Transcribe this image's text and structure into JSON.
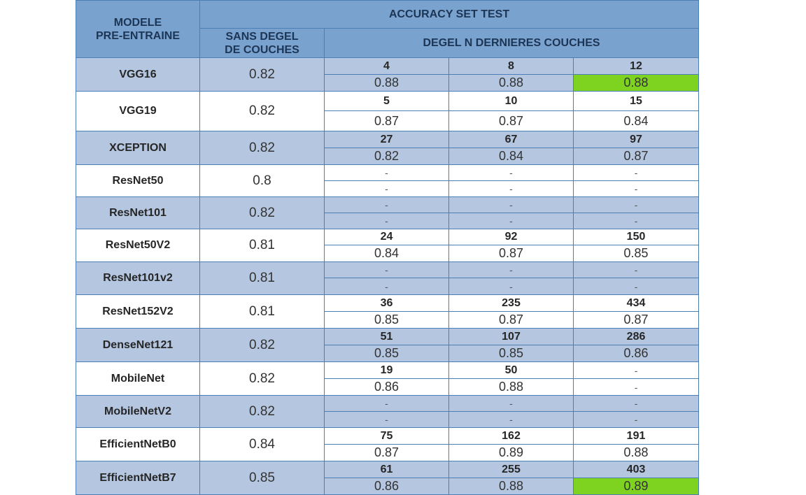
{
  "header": {
    "model_col": "MODELE\nPRE-ENTRAINE",
    "accuracy": "ACCURACY SET TEST",
    "no_unfreeze": "SANS DEGEL\nDE COUCHES",
    "unfreeze": "DEGEL N DERNIERES COUCHES"
  },
  "rows": [
    {
      "model": "VGG16",
      "base": "0.82",
      "n": [
        "4",
        "8",
        "12"
      ],
      "v": [
        "0.88",
        "0.88",
        "0.88"
      ],
      "best": [
        false,
        false,
        true
      ]
    },
    {
      "model": "VGG19",
      "base": "0.82",
      "n": [
        "5",
        "10",
        "15"
      ],
      "v": [
        "0.87",
        "0.87",
        "0.84"
      ],
      "best": [
        false,
        false,
        false
      ]
    },
    {
      "model": "XCEPTION",
      "base": "0.82",
      "n": [
        "27",
        "67",
        "97"
      ],
      "v": [
        "0.82",
        "0.84",
        "0.87"
      ],
      "best": [
        false,
        false,
        false
      ]
    },
    {
      "model": "ResNet50",
      "base": "0.8",
      "n": [
        "-",
        "-",
        "-"
      ],
      "v": [
        "-",
        "-",
        "-"
      ],
      "best": [
        false,
        false,
        false
      ]
    },
    {
      "model": "ResNet101",
      "base": "0.82",
      "n": [
        "-",
        "-",
        "-"
      ],
      "v": [
        "-",
        "-",
        "-"
      ],
      "best": [
        false,
        false,
        false
      ]
    },
    {
      "model": "ResNet50V2",
      "base": "0.81",
      "n": [
        "24",
        "92",
        "150"
      ],
      "v": [
        "0.84",
        "0.87",
        "0.85"
      ],
      "best": [
        false,
        false,
        false
      ]
    },
    {
      "model": "ResNet101v2",
      "base": "0.81",
      "n": [
        "-",
        "-",
        "-"
      ],
      "v": [
        "-",
        "-",
        "-"
      ],
      "best": [
        false,
        false,
        false
      ]
    },
    {
      "model": "ResNet152V2",
      "base": "0.81",
      "n": [
        "36",
        "235",
        "434"
      ],
      "v": [
        "0.85",
        "0.87",
        "0.87"
      ],
      "best": [
        false,
        false,
        false
      ]
    },
    {
      "model": "DenseNet121",
      "base": "0.82",
      "n": [
        "51",
        "107",
        "286"
      ],
      "v": [
        "0.85",
        "0.85",
        "0.86"
      ],
      "best": [
        false,
        false,
        false
      ]
    },
    {
      "model": "MobileNet",
      "base": "0.82",
      "n": [
        "19",
        "50",
        "-"
      ],
      "v": [
        "0.86",
        "0.88",
        "-"
      ],
      "best": [
        false,
        false,
        false
      ]
    },
    {
      "model": "MobileNetV2",
      "base": "0.82",
      "n": [
        "-",
        "-",
        "-"
      ],
      "v": [
        "-",
        "-",
        "-"
      ],
      "best": [
        false,
        false,
        false
      ]
    },
    {
      "model": "EfficientNetB0",
      "base": "0.84",
      "n": [
        "75",
        "162",
        "191"
      ],
      "v": [
        "0.87",
        "0.89",
        "0.88"
      ],
      "best": [
        false,
        false,
        false
      ]
    },
    {
      "model": "EfficientNetB7",
      "base": "0.85",
      "n": [
        "61",
        "255",
        "403"
      ],
      "v": [
        "0.86",
        "0.88",
        "0.89"
      ],
      "best": [
        false,
        false,
        true
      ]
    }
  ],
  "colors": {
    "header": "#7aa2cf",
    "stripe": "#b4c6e0",
    "border": "#4a7eb4",
    "best": "#7ed321"
  }
}
